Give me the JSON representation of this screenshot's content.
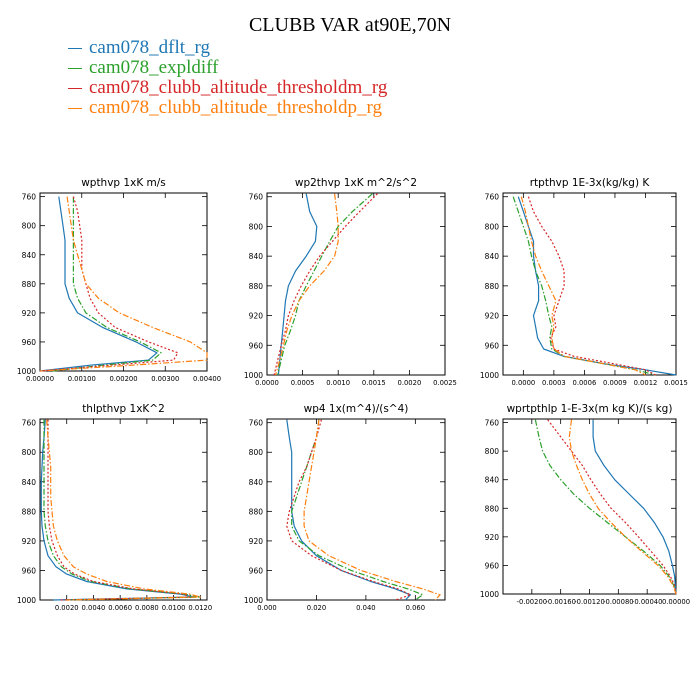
{
  "page": {
    "title": "CLUBB VAR at90E,70N",
    "legend": [
      {
        "label": "cam078_dflt_rg",
        "color": "#1f77b4",
        "dash": "solid"
      },
      {
        "label": "cam078_expldiff",
        "color": "#2ca02c",
        "dash": "dashdot"
      },
      {
        "label": "cam078_clubb_altitude_thresholdm_rg",
        "color": "#d62728",
        "dash": "dotted"
      },
      {
        "label": "cam078_clubb_altitude_thresholdp_rg",
        "color": "#ff7f0e",
        "dash": "dashdot"
      }
    ]
  },
  "chart_data": [
    {
      "type": "line",
      "title": "wpthvp  1xK m/s",
      "xlim": [
        0,
        0.004
      ],
      "xticks": [
        0,
        0.001,
        0.002,
        0.003,
        0.004
      ],
      "xticklabels": [
        "0.00000",
        "0.00100",
        "0.00200",
        "0.00300",
        "0.00400"
      ],
      "ylim": [
        1000,
        755
      ],
      "yticks": [
        760,
        800,
        840,
        880,
        920,
        960,
        1000
      ],
      "yticklabels": [
        "760",
        "800",
        "840",
        "880",
        "920",
        "960",
        "1000"
      ],
      "y": [
        760,
        780,
        800,
        820,
        840,
        860,
        880,
        900,
        920,
        940,
        960,
        975,
        985,
        992,
        1000
      ],
      "series": [
        {
          "name": "cam078_dflt_rg",
          "x": [
            0.00045,
            0.0005,
            0.00055,
            0.0006,
            0.0006,
            0.0006,
            0.0006,
            0.0007,
            0.0009,
            0.0015,
            0.0023,
            0.0028,
            0.0026,
            0.0012,
            0.0
          ]
        },
        {
          "name": "cam078_expldiff",
          "x": [
            0.0008,
            0.0008,
            0.0008,
            0.0008,
            0.0008,
            0.0008,
            0.0008,
            0.0009,
            0.0011,
            0.0016,
            0.0024,
            0.0029,
            0.0027,
            0.0015,
            0.0003
          ]
        },
        {
          "name": "cam078_clubb_altitude_thresholdm_rg",
          "x": [
            0.0008,
            0.0009,
            0.00095,
            0.001,
            0.001,
            0.001,
            0.0011,
            0.0012,
            0.0014,
            0.0018,
            0.0026,
            0.0033,
            0.0032,
            0.0017,
            0.0
          ]
        },
        {
          "name": "cam078_clubb_altitude_thresholdp_rg",
          "x": [
            0.00065,
            0.0007,
            0.00075,
            0.0008,
            0.0009,
            0.001,
            0.0011,
            0.0014,
            0.0019,
            0.0027,
            0.0036,
            0.004,
            0.004,
            0.0022,
            0.0
          ]
        }
      ]
    },
    {
      "type": "line",
      "title": "wp2thvp  1xK m^2/s^2",
      "xlim": [
        0,
        0.0025
      ],
      "xticks": [
        0,
        0.0005,
        0.001,
        0.0015,
        0.002,
        0.0025
      ],
      "xticklabels": [
        "0.0000",
        "0.0005",
        "0.0010",
        "0.0015",
        "0.0020",
        "0.0025"
      ],
      "ylim": [
        1000,
        755
      ],
      "yticks": [
        760,
        800,
        840,
        880,
        920,
        960,
        1000
      ],
      "yticklabels": [
        "760",
        "800",
        "840",
        "880",
        "920",
        "960",
        "1000"
      ],
      "y": [
        756,
        780,
        800,
        820,
        840,
        860,
        880,
        900,
        920,
        940,
        960,
        980,
        1000
      ],
      "series": [
        {
          "name": "cam078_dflt_rg",
          "x": [
            0.00055,
            0.0006,
            0.0007,
            0.00068,
            0.00055,
            0.0004,
            0.0003,
            0.00026,
            0.00024,
            0.00022,
            0.0002,
            0.00018,
            0.00016
          ]
        },
        {
          "name": "cam078_expldiff",
          "x": [
            0.00148,
            0.0012,
            0.001,
            0.00088,
            0.00077,
            0.00066,
            0.00055,
            0.00045,
            0.0004,
            0.00033,
            0.00025,
            0.0002,
            0.00015
          ]
        },
        {
          "name": "cam078_clubb_altitude_thresholdm_rg",
          "x": [
            0.00155,
            0.0013,
            0.0011,
            0.00092,
            0.00074,
            0.0006,
            0.00048,
            0.00038,
            0.0003,
            0.00026,
            0.0002,
            0.00015,
            0.0001
          ]
        },
        {
          "name": "cam078_clubb_altitude_thresholdp_rg",
          "x": [
            0.00095,
            0.00098,
            0.001,
            0.001,
            0.00095,
            0.0008,
            0.0006,
            0.00045,
            0.00035,
            0.00028,
            0.00023,
            0.00018,
            0.00012
          ]
        }
      ]
    },
    {
      "type": "line",
      "title": "rtpthvp  1E-3x(kg/kg) K",
      "xlim": [
        -0.0002,
        0.0015
      ],
      "xticks": [
        0,
        0.0003,
        0.0006,
        0.0009,
        0.0012,
        0.0015
      ],
      "xticklabels": [
        "0.0000",
        "0.0003",
        "0.0006",
        "0.0009",
        "0.0012",
        "0.0015"
      ],
      "ylim": [
        1000,
        755
      ],
      "yticks": [
        760,
        800,
        840,
        880,
        920,
        960,
        1000
      ],
      "yticklabels": [
        "760",
        "800",
        "840",
        "880",
        "920",
        "960",
        "1000"
      ],
      "y": [
        760,
        780,
        800,
        820,
        840,
        860,
        880,
        900,
        920,
        935,
        950,
        965,
        975,
        985,
        993,
        1000
      ],
      "series": [
        {
          "name": "cam078_dflt_rg",
          "x": [
            -5e-05,
            0.0,
            5e-05,
            0.0001,
            0.0001,
            0.00012,
            0.00015,
            0.00015,
            0.0001,
            0.00012,
            0.00014,
            0.0002,
            0.0004,
            0.0008,
            0.0012,
            0.0015
          ]
        },
        {
          "name": "cam078_expldiff",
          "x": [
            -0.0001,
            -5e-05,
            0.0,
            5e-05,
            8e-05,
            0.00012,
            0.00018,
            0.00022,
            0.00025,
            0.00028,
            0.00026,
            0.00028,
            0.0004,
            0.0008,
            0.0011,
            0.0013
          ]
        },
        {
          "name": "cam078_clubb_altitude_thresholdm_rg",
          "x": [
            5e-05,
            0.0001,
            0.00018,
            0.00028,
            0.00035,
            0.0004,
            0.0004,
            0.00035,
            0.0003,
            0.00032,
            0.00027,
            0.0003,
            0.0005,
            0.0009,
            0.0012,
            0.0013
          ]
        },
        {
          "name": "cam078_clubb_altitude_thresholdp_rg",
          "x": [
            -2e-05,
            2e-05,
            5e-05,
            8e-05,
            0.00012,
            0.00018,
            0.00025,
            0.00032,
            0.00028,
            0.0003,
            0.00028,
            0.0003,
            0.0004,
            0.0008,
            0.0011,
            0.0012
          ]
        }
      ]
    },
    {
      "type": "line",
      "title": "thlpthvp  1xK^2",
      "xlim": [
        0,
        0.0125
      ],
      "xticks": [
        0.002,
        0.004,
        0.006,
        0.008,
        0.01,
        0.012
      ],
      "xticklabels": [
        "0.0020",
        "0.0040",
        "0.0060",
        "0.0080",
        "0.0100",
        "0.0120"
      ],
      "ylim": [
        1000,
        755
      ],
      "yticks": [
        760,
        800,
        840,
        880,
        920,
        960,
        1000
      ],
      "yticklabels": [
        "760",
        "800",
        "840",
        "880",
        "920",
        "960",
        "1000"
      ],
      "y": [
        756,
        780,
        800,
        820,
        840,
        860,
        880,
        900,
        920,
        940,
        955,
        965,
        975,
        985,
        992,
        996,
        1000
      ],
      "series": [
        {
          "name": "cam078_dflt_rg",
          "x": [
            0.0004,
            0.0003,
            0.0002,
            0.00015,
            0.0001,
            0.0001,
            0.0001,
            0.00015,
            0.0003,
            0.0006,
            0.0012,
            0.002,
            0.0035,
            0.0065,
            0.0105,
            0.0115,
            0.001
          ]
        },
        {
          "name": "cam078_expldiff",
          "x": [
            0.0003,
            0.0003,
            0.0003,
            0.0003,
            0.0003,
            0.0003,
            0.0003,
            0.0004,
            0.0006,
            0.001,
            0.0016,
            0.0024,
            0.0038,
            0.0068,
            0.0108,
            0.012,
            0.002
          ]
        },
        {
          "name": "cam078_clubb_altitude_thresholdm_rg",
          "x": [
            0.0006,
            0.0006,
            0.0006,
            0.0006,
            0.0006,
            0.0006,
            0.0006,
            0.0007,
            0.0009,
            0.0013,
            0.0018,
            0.0026,
            0.004,
            0.007,
            0.0108,
            0.0112,
            0.0015
          ]
        },
        {
          "name": "cam078_clubb_altitude_thresholdp_rg",
          "x": [
            0.0005,
            0.0006,
            0.0007,
            0.0008,
            0.0008,
            0.0008,
            0.0009,
            0.001,
            0.0013,
            0.0018,
            0.0025,
            0.0035,
            0.005,
            0.0078,
            0.0112,
            0.012,
            0.002
          ]
        }
      ]
    },
    {
      "type": "line",
      "title": "wp4  1x(m^4)/(s^4)",
      "xlim": [
        0,
        0.072
      ],
      "xticks": [
        0,
        0.02,
        0.04,
        0.06
      ],
      "xticklabels": [
        "0.000",
        "0.020",
        "0.040",
        "0.060"
      ],
      "ylim": [
        1000,
        755
      ],
      "yticks": [
        760,
        800,
        840,
        880,
        920,
        960,
        1000
      ],
      "yticklabels": [
        "760",
        "800",
        "840",
        "880",
        "920",
        "960",
        "1000"
      ],
      "y": [
        756,
        780,
        800,
        820,
        840,
        860,
        880,
        900,
        920,
        940,
        960,
        975,
        985,
        993,
        1000
      ],
      "series": [
        {
          "name": "cam078_dflt_rg",
          "x": [
            0.008,
            0.009,
            0.01,
            0.01,
            0.01,
            0.01,
            0.01,
            0.011,
            0.014,
            0.02,
            0.03,
            0.042,
            0.052,
            0.058,
            0.056
          ]
        },
        {
          "name": "cam078_expldiff",
          "x": [
            0.021,
            0.02,
            0.018,
            0.016,
            0.014,
            0.012,
            0.01,
            0.01,
            0.013,
            0.021,
            0.034,
            0.047,
            0.057,
            0.063,
            0.06
          ]
        },
        {
          "name": "cam078_clubb_altitude_thresholdm_rg",
          "x": [
            0.022,
            0.02,
            0.018,
            0.016,
            0.013,
            0.011,
            0.009,
            0.008,
            0.01,
            0.018,
            0.03,
            0.043,
            0.053,
            0.058,
            0.052
          ]
        },
        {
          "name": "cam078_clubb_altitude_thresholdp_rg",
          "x": [
            0.021,
            0.02,
            0.019,
            0.018,
            0.017,
            0.016,
            0.015,
            0.015,
            0.017,
            0.025,
            0.038,
            0.052,
            0.063,
            0.07,
            0.068
          ]
        }
      ]
    },
    {
      "type": "line",
      "title": "wprtpthlp  1-E-3x(m kg K)/(s kg)",
      "xlim": [
        -0.0024,
        0.0
      ],
      "xticks": [
        -0.002,
        -0.0016,
        -0.0012,
        -0.0008,
        -0.0004,
        0.0
      ],
      "xticklabels": [
        "-0.00200",
        "-0.00160",
        "-0.00120",
        "-0.00080",
        "-0.00040",
        "0.00000"
      ],
      "ylim": [
        1000,
        755
      ],
      "yticks": [
        760,
        800,
        840,
        880,
        920,
        960,
        1000
      ],
      "yticklabels": [
        "760",
        "800",
        "840",
        "880",
        "920",
        "960",
        "1000"
      ],
      "y": [
        756,
        780,
        800,
        820,
        840,
        860,
        880,
        900,
        920,
        940,
        960,
        975,
        988,
        1000
      ],
      "series": [
        {
          "name": "cam078_dflt_rg",
          "x": [
            -0.00115,
            -0.00115,
            -0.00112,
            -0.001,
            -0.00085,
            -0.00065,
            -0.00045,
            -0.0003,
            -0.00018,
            -0.0001,
            -5e-05,
            -2e-05,
            -1e-05,
            0.0
          ]
        },
        {
          "name": "cam078_expldiff",
          "x": [
            -0.00195,
            -0.0019,
            -0.00185,
            -0.00175,
            -0.0016,
            -0.00142,
            -0.0012,
            -0.00095,
            -0.0007,
            -0.00045,
            -0.00022,
            -0.0001,
            -3e-05,
            0.0
          ]
        },
        {
          "name": "cam078_clubb_altitude_thresholdm_rg",
          "x": [
            -0.00178,
            -0.0016,
            -0.00145,
            -0.0013,
            -0.00118,
            -0.00105,
            -0.0009,
            -0.0007,
            -0.00052,
            -0.00035,
            -0.00018,
            -8e-05,
            -2e-05,
            0.0
          ]
        },
        {
          "name": "cam078_clubb_altitude_thresholdp_rg",
          "x": [
            -0.00145,
            -0.00148,
            -0.00145,
            -0.00138,
            -0.0013,
            -0.0012,
            -0.00108,
            -0.0009,
            -0.0007,
            -0.00048,
            -0.00025,
            -0.00012,
            -4e-05,
            0.0
          ]
        }
      ]
    }
  ]
}
